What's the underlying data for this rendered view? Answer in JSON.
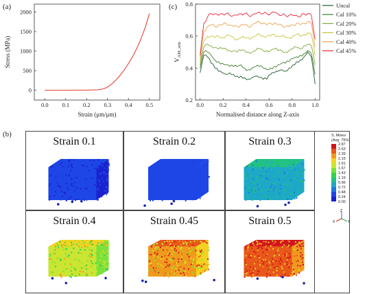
{
  "panel_labels": {
    "a": "(a)",
    "b": "(b)",
    "c": "(c)"
  },
  "chart_data": [
    {
      "type": "line",
      "xlabel": "Strain (μm/μm)",
      "ylabel": "Stress (MPa)",
      "xlim": [
        -0.05,
        0.55
      ],
      "ylim": [
        -250,
        2200
      ],
      "xticks": [
        "0.0",
        "0.1",
        "0.2",
        "0.3",
        "0.4",
        "0.5"
      ],
      "yticks": [
        "0",
        "500",
        "1000",
        "1500",
        "2000"
      ],
      "series": [
        {
          "color": "#e8321e",
          "x": [
            0.0,
            0.05,
            0.1,
            0.15,
            0.2,
            0.25,
            0.27,
            0.29,
            0.3,
            0.32,
            0.34,
            0.36,
            0.38,
            0.4,
            0.42,
            0.44,
            0.46,
            0.48,
            0.5
          ],
          "y": [
            0,
            0,
            1,
            2,
            4,
            12,
            25,
            55,
            85,
            160,
            260,
            380,
            520,
            680,
            860,
            1070,
            1310,
            1600,
            1960
          ]
        }
      ]
    },
    {
      "type": "line",
      "xlabel": "Normalised distance along Z-axis",
      "ylabel": "V_AM_sim",
      "xlim": [
        -0.04,
        1.04
      ],
      "ylim": [
        0.2,
        0.8
      ],
      "xticks": [
        "0.0",
        "0.2",
        "0.4",
        "0.6",
        "0.8",
        "1.0"
      ],
      "yticks": [
        "0.2",
        "0.4",
        "0.6",
        "0.8"
      ],
      "series": [
        {
          "name": "Uncal",
          "color": "#1e5a2a",
          "base": [
            0.37,
            0.48,
            0.47,
            0.43,
            0.4,
            0.38,
            0.37,
            0.36,
            0.37,
            0.36,
            0.35,
            0.35,
            0.34,
            0.33,
            0.34,
            0.35,
            0.34,
            0.33,
            0.33,
            0.36,
            0.37,
            0.38,
            0.39,
            0.38,
            0.4,
            0.42,
            0.44,
            0.45,
            0.47,
            0.5,
            0.47,
            0.3
          ]
        },
        {
          "name": "Cal 10%",
          "color": "#3d7c32",
          "base": [
            0.4,
            0.5,
            0.5,
            0.48,
            0.45,
            0.44,
            0.43,
            0.42,
            0.41,
            0.41,
            0.41,
            0.42,
            0.4,
            0.39,
            0.4,
            0.41,
            0.41,
            0.4,
            0.39,
            0.4,
            0.41,
            0.42,
            0.43,
            0.43,
            0.44,
            0.46,
            0.47,
            0.48,
            0.49,
            0.51,
            0.49,
            0.36
          ]
        },
        {
          "name": "Cal 20%",
          "color": "#7fa83a",
          "base": [
            0.42,
            0.53,
            0.55,
            0.54,
            0.53,
            0.52,
            0.52,
            0.52,
            0.51,
            0.51,
            0.5,
            0.51,
            0.51,
            0.5,
            0.5,
            0.51,
            0.52,
            0.51,
            0.51,
            0.51,
            0.52,
            0.51,
            0.51,
            0.5,
            0.51,
            0.52,
            0.53,
            0.52,
            0.54,
            0.55,
            0.54,
            0.42
          ]
        },
        {
          "name": "Cal 30%",
          "color": "#c8c33a",
          "base": [
            0.44,
            0.57,
            0.6,
            0.6,
            0.59,
            0.6,
            0.59,
            0.6,
            0.6,
            0.59,
            0.58,
            0.59,
            0.59,
            0.59,
            0.59,
            0.6,
            0.61,
            0.6,
            0.6,
            0.6,
            0.61,
            0.6,
            0.6,
            0.59,
            0.59,
            0.6,
            0.61,
            0.6,
            0.61,
            0.62,
            0.61,
            0.48
          ]
        },
        {
          "name": "Cal 40%",
          "color": "#e8a24a",
          "base": [
            0.46,
            0.63,
            0.66,
            0.67,
            0.66,
            0.67,
            0.67,
            0.68,
            0.67,
            0.66,
            0.66,
            0.67,
            0.67,
            0.66,
            0.67,
            0.68,
            0.69,
            0.68,
            0.67,
            0.68,
            0.68,
            0.67,
            0.67,
            0.66,
            0.66,
            0.67,
            0.68,
            0.67,
            0.68,
            0.69,
            0.68,
            0.53
          ]
        },
        {
          "name": "Cal 45%",
          "color": "#e8223a",
          "base": [
            0.48,
            0.68,
            0.72,
            0.74,
            0.74,
            0.73,
            0.74,
            0.74,
            0.73,
            0.73,
            0.73,
            0.74,
            0.74,
            0.73,
            0.73,
            0.74,
            0.75,
            0.74,
            0.74,
            0.74,
            0.75,
            0.74,
            0.73,
            0.73,
            0.73,
            0.73,
            0.73,
            0.72,
            0.74,
            0.74,
            0.73,
            0.58
          ]
        }
      ]
    }
  ],
  "strain_panels": [
    {
      "label": "Strain 0.1",
      "stress_level": 0.05
    },
    {
      "label": "Strain 0.2",
      "stress_level": 0.08
    },
    {
      "label": "Strain 0.3",
      "stress_level": 0.3
    },
    {
      "label": "Strain 0.4",
      "stress_level": 0.6
    },
    {
      "label": "Strain 0.45",
      "stress_level": 0.8
    },
    {
      "label": "Strain 0.5",
      "stress_level": 0.95
    }
  ],
  "colorbar": {
    "title": [
      "S, Mises",
      "(Avg: 75%)"
    ],
    "ticks": [
      "2.87",
      "2.63",
      "2.39",
      "2.15",
      "1.91",
      "1.67",
      "1.43",
      "1.19",
      "0.96",
      "0.72",
      "0.48",
      "0.24",
      "0.00"
    ],
    "colors": [
      "#d2141e",
      "#e8581a",
      "#f09a1c",
      "#f5d21e",
      "#c8e632",
      "#7ae23a",
      "#36d24a",
      "#22c282",
      "#1ea8c8",
      "#1e78e0",
      "#1e46e6",
      "#1a22d2"
    ]
  },
  "axis_triad": {
    "x": "X",
    "y": "Y",
    "z": "Z"
  }
}
